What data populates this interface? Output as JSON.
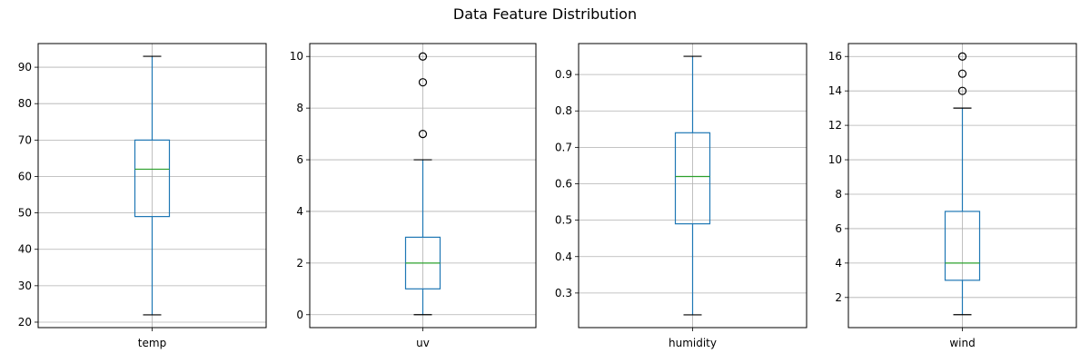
{
  "title": "Data Feature Distribution",
  "colors": {
    "box": "#1f77b4",
    "median": "#2ca02c",
    "grid": "#b0b0b0",
    "axes": "#000000",
    "outlier": "#000000"
  },
  "chart_data": [
    {
      "type": "box",
      "category": "temp",
      "ylim": [
        18.5,
        96.5
      ],
      "yticks": [
        20,
        30,
        40,
        50,
        60,
        70,
        80,
        90
      ],
      "grid": true,
      "stats": {
        "whisker_low": 22,
        "q1": 49,
        "median": 62,
        "q3": 70,
        "whisker_high": 93
      },
      "outliers": []
    },
    {
      "type": "box",
      "category": "uv",
      "ylim": [
        -0.5,
        10.5
      ],
      "yticks": [
        0,
        2,
        4,
        6,
        8,
        10
      ],
      "grid": true,
      "stats": {
        "whisker_low": 0,
        "q1": 1,
        "median": 2,
        "q3": 3,
        "whisker_high": 6
      },
      "outliers": [
        7,
        9,
        10
      ]
    },
    {
      "type": "box",
      "category": "humidity",
      "ylim": [
        0.205,
        0.985
      ],
      "yticks": [
        0.3,
        0.4,
        0.5,
        0.6,
        0.7,
        0.8,
        0.9
      ],
      "grid": true,
      "stats": {
        "whisker_low": 0.24,
        "q1": 0.49,
        "median": 0.62,
        "q3": 0.74,
        "whisker_high": 0.95
      },
      "outliers": []
    },
    {
      "type": "box",
      "category": "wind",
      "ylim": [
        0.25,
        16.75
      ],
      "yticks": [
        2,
        4,
        6,
        8,
        10,
        12,
        14,
        16
      ],
      "grid": true,
      "stats": {
        "whisker_low": 1,
        "q1": 3,
        "median": 4,
        "q3": 7,
        "whisker_high": 13
      },
      "outliers": [
        14,
        15,
        16
      ]
    }
  ]
}
